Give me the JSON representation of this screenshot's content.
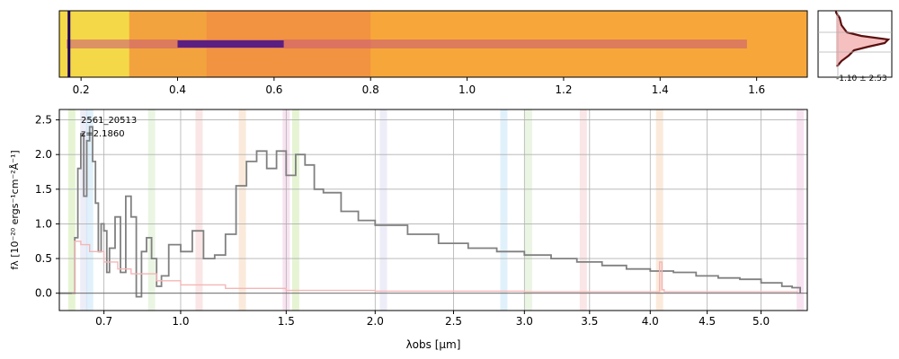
{
  "colors": {
    "spectrum": "#808080",
    "error": "#f4b6b6",
    "profile_fill": "#f4b0b0",
    "profile_line": "#5a1010",
    "grid": "#b0b0b0"
  },
  "spectrum_2d": {
    "colormap": "plasma",
    "x_ticks": [
      "0.2",
      "0.4",
      "0.6",
      "0.8",
      "1.0",
      "1.2",
      "1.4",
      "1.6"
    ]
  },
  "profile_panel": {
    "label": "-1.10 ± 2.53"
  },
  "chart_data": {
    "type": "line",
    "title": "",
    "annotation_id": "2561_20513",
    "annotation_z": "z=2.1860",
    "xlabel": "λobs [μm]",
    "ylabel": "fλ [10⁻²⁰ ergs⁻¹cm⁻²Å⁻¹]",
    "xlim": [
      0.55,
      5.45
    ],
    "ylim": [
      -0.25,
      2.65
    ],
    "x_scale": "sqrt",
    "grid": true,
    "x_ticks": [
      "0.7",
      "1.0",
      "1.5",
      "2.0",
      "2.5",
      "3.0",
      "3.5",
      "4.0",
      "4.5",
      "5.0"
    ],
    "y_ticks": [
      "0.0",
      "0.5",
      "1.0",
      "1.5",
      "2.0",
      "2.5"
    ],
    "series": [
      {
        "role": "flux",
        "x": [
          0.55,
          0.59,
          0.6,
          0.61,
          0.62,
          0.63,
          0.64,
          0.65,
          0.66,
          0.67,
          0.68,
          0.69,
          0.7,
          0.71,
          0.72,
          0.74,
          0.76,
          0.78,
          0.8,
          0.82,
          0.84,
          0.86,
          0.88,
          0.9,
          0.92,
          0.95,
          1.0,
          1.05,
          1.1,
          1.15,
          1.2,
          1.25,
          1.3,
          1.35,
          1.4,
          1.45,
          1.5,
          1.55,
          1.6,
          1.65,
          1.7,
          1.8,
          1.9,
          2.0,
          2.2,
          2.4,
          2.6,
          2.8,
          3.0,
          3.2,
          3.4,
          3.6,
          3.8,
          4.0,
          4.2,
          4.4,
          4.6,
          4.8,
          5.0,
          5.2,
          5.3,
          5.38
        ],
        "y": [
          0.0,
          0.0,
          0.8,
          1.8,
          2.3,
          1.4,
          2.2,
          2.4,
          1.9,
          1.3,
          0.6,
          1.0,
          0.9,
          0.3,
          0.65,
          1.1,
          0.3,
          1.4,
          1.1,
          -0.05,
          0.6,
          0.8,
          0.5,
          0.1,
          0.25,
          0.7,
          0.6,
          0.9,
          0.5,
          0.55,
          0.85,
          1.55,
          1.9,
          2.05,
          1.8,
          2.05,
          1.7,
          2.0,
          1.85,
          1.5,
          1.45,
          1.18,
          1.05,
          0.98,
          0.85,
          0.72,
          0.65,
          0.6,
          0.55,
          0.5,
          0.45,
          0.4,
          0.35,
          0.32,
          0.3,
          0.25,
          0.22,
          0.2,
          0.15,
          0.1,
          0.08,
          0.0
        ]
      },
      {
        "role": "error",
        "x": [
          0.59,
          0.6,
          0.62,
          0.65,
          0.7,
          0.75,
          0.8,
          0.9,
          1.0,
          1.2,
          1.5,
          2.0,
          2.5,
          3.0,
          4.0,
          4.08,
          4.1,
          4.12,
          5.0,
          5.35
        ],
        "y": [
          0.0,
          0.75,
          0.7,
          0.6,
          0.45,
          0.35,
          0.28,
          0.18,
          0.12,
          0.07,
          0.04,
          0.03,
          0.03,
          0.02,
          0.02,
          0.45,
          0.05,
          0.02,
          0.02,
          0.0
        ]
      }
    ],
    "line_bands_um": [
      0.59,
      0.63,
      0.65,
      0.88,
      1.08,
      1.28,
      1.5,
      1.55,
      2.05,
      2.85,
      3.03,
      3.45,
      4.08,
      5.38
    ]
  }
}
